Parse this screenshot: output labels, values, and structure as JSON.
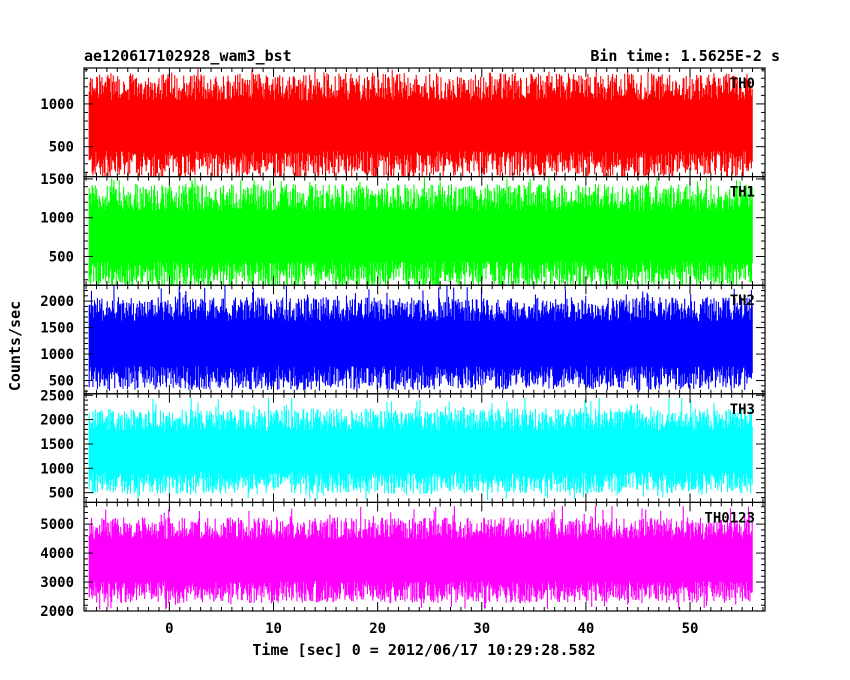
{
  "header": {
    "left": "ae120617102928_wam3_bst",
    "right": "Bin time: 1.5625E-2 s"
  },
  "chart_data": {
    "type": "line",
    "title": "ae120617102928_wam3_bst",
    "subtitle": "Bin time: 1.5625E-2 s",
    "xlabel": "Time [sec] 0 = 2012/06/17 10:29:28.582",
    "ylabel": "Counts/sec",
    "xlim": [
      -8.2,
      57.2
    ],
    "x_data_range": [
      -7.7,
      56.0
    ],
    "x_ticks": [
      0,
      10,
      20,
      30,
      40,
      50
    ],
    "x_tick_labels": [
      "0",
      "10",
      "20",
      "30",
      "40",
      "50"
    ],
    "grid": false,
    "legend": "none",
    "panels": [
      {
        "name": "TH0",
        "color": "#ff0000",
        "ylim": [
          150,
          1420
        ],
        "y_ticks": [
          500,
          1000
        ],
        "y_tick_labels": [
          "500",
          "1000"
        ],
        "band": [
          290,
          1200
        ],
        "band_extremes": [
          150,
          1420
        ]
      },
      {
        "name": "TH1",
        "color": "#00ff00",
        "ylim": [
          130,
          1530
        ],
        "y_ticks": [
          500,
          1000,
          1500
        ],
        "y_tick_labels": [
          "500",
          "1000",
          "1500"
        ],
        "band": [
          270,
          1260
        ],
        "band_extremes": [
          120,
          1520
        ]
      },
      {
        "name": "TH2",
        "color": "#0000ff",
        "ylim": [
          250,
          2300
        ],
        "y_ticks": [
          500,
          1000,
          1500,
          2000
        ],
        "y_tick_labels": [
          "500",
          "1000",
          "1500",
          "2000"
        ],
        "band": [
          550,
          1850
        ],
        "band_extremes": [
          290,
          2300
        ]
      },
      {
        "name": "TH3",
        "color": "#00ffff",
        "ylim": [
          300,
          2530
        ],
        "y_ticks": [
          500,
          1000,
          1500,
          2000,
          2500
        ],
        "y_tick_labels": [
          "500",
          "1000",
          "1500",
          "2000",
          "2500"
        ],
        "band": [
          700,
          2000
        ],
        "band_extremes": [
          350,
          2450
        ]
      },
      {
        "name": "TH0123",
        "color": "#ff00ff",
        "ylim": [
          2000,
          5750
        ],
        "y_ticks": [
          2000,
          3000,
          4000,
          5000
        ],
        "y_tick_labels": [
          "2000",
          "3000",
          "4000",
          "5000"
        ],
        "band": [
          2650,
          4850
        ],
        "band_extremes": [
          2020,
          5650
        ]
      }
    ]
  }
}
